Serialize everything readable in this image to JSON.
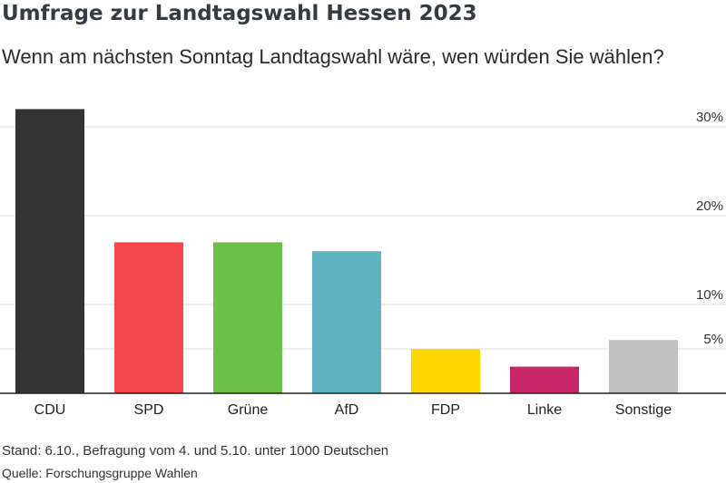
{
  "chart_data": {
    "type": "bar",
    "title": "Umfrage zur Landtagswahl Hessen 2023",
    "subtitle": "Wenn am nächsten Sonntag Landtagswahl wäre, wen würden Sie wählen?",
    "categories": [
      "CDU",
      "SPD",
      "Grüne",
      "AfD",
      "FDP",
      "Linke",
      "Sonstige"
    ],
    "values": [
      32,
      17,
      17,
      16,
      5,
      3,
      6
    ],
    "colors": [
      "#333333",
      "#f5474b",
      "#6cc04a",
      "#5fb2c0",
      "#ffd600",
      "#c8286a",
      "#c0c0c0"
    ],
    "yticks": [
      {
        "value": 30,
        "label": "30%"
      },
      {
        "value": 20,
        "label": "20%"
      },
      {
        "value": 10,
        "label": "10%"
      },
      {
        "value": 5,
        "label": "5%"
      }
    ],
    "ylim": [
      0,
      32
    ],
    "grid": true,
    "xlabel": "",
    "ylabel": ""
  },
  "footer": {
    "stand": "Stand: 6.10., Befragung vom 4. und 5.10. unter 1000 Deutschen",
    "source": "Quelle: Forschungsgruppe Wahlen"
  }
}
